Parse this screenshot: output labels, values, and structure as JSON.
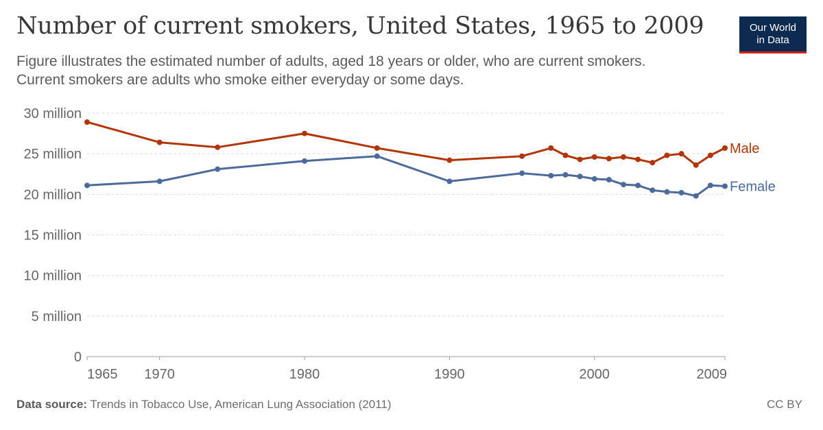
{
  "header": {
    "title": "Number of current smokers, United States, 1965 to 2009",
    "subtitle": "Figure illustrates the estimated number of adults, aged 18 years or older, who are current smokers. Current smokers are adults who smoke either everyday or some days."
  },
  "logo": {
    "line1": "Our World",
    "line2": "in Data"
  },
  "footer": {
    "source_label": "Data source:",
    "source_text": "Trends in Tobacco Use, American Lung Association (2011)",
    "license": "CC BY"
  },
  "colors": {
    "male": "#b13507",
    "female": "#4c6a9c",
    "grid": "#dddddd",
    "axis": "#999999"
  },
  "chart_data": {
    "type": "line",
    "title": "Number of current smokers, United States, 1965 to 2009",
    "xlim": [
      1965,
      2009
    ],
    "ylim": [
      0,
      30000000
    ],
    "y_ticks": [
      {
        "value": 0,
        "label": "0"
      },
      {
        "value": 5000000,
        "label": "5 million"
      },
      {
        "value": 10000000,
        "label": "10 million"
      },
      {
        "value": 15000000,
        "label": "15 million"
      },
      {
        "value": 20000000,
        "label": "20 million"
      },
      {
        "value": 25000000,
        "label": "25 million"
      },
      {
        "value": 30000000,
        "label": "30 million"
      }
    ],
    "x_ticks": [
      {
        "value": 1965,
        "label": "1965"
      },
      {
        "value": 1970,
        "label": "1970"
      },
      {
        "value": 1980,
        "label": "1980"
      },
      {
        "value": 1990,
        "label": "1990"
      },
      {
        "value": 2000,
        "label": "2000"
      },
      {
        "value": 2009,
        "label": "2009"
      }
    ],
    "grid": true,
    "legend": "line-end labels",
    "series": [
      {
        "name": "Male",
        "color": "#b13507",
        "x": [
          1965,
          1970,
          1974,
          1980,
          1985,
          1990,
          1995,
          1997,
          1998,
          1999,
          2000,
          2001,
          2002,
          2003,
          2004,
          2005,
          2006,
          2007,
          2008,
          2009
        ],
        "values": [
          28900000,
          26400000,
          25800000,
          27500000,
          25700000,
          24200000,
          24700000,
          25700000,
          24800000,
          24300000,
          24600000,
          24400000,
          24600000,
          24300000,
          23900000,
          24800000,
          25000000,
          23600000,
          24800000,
          25700000
        ]
      },
      {
        "name": "Female",
        "color": "#4c6a9c",
        "x": [
          1965,
          1970,
          1974,
          1980,
          1985,
          1990,
          1995,
          1997,
          1998,
          1999,
          2000,
          2001,
          2002,
          2003,
          2004,
          2005,
          2006,
          2007,
          2008,
          2009
        ],
        "values": [
          21100000,
          21600000,
          23100000,
          24100000,
          24700000,
          21600000,
          22600000,
          22300000,
          22400000,
          22200000,
          21900000,
          21800000,
          21200000,
          21100000,
          20500000,
          20300000,
          20200000,
          19800000,
          21100000,
          21000000
        ]
      }
    ]
  }
}
